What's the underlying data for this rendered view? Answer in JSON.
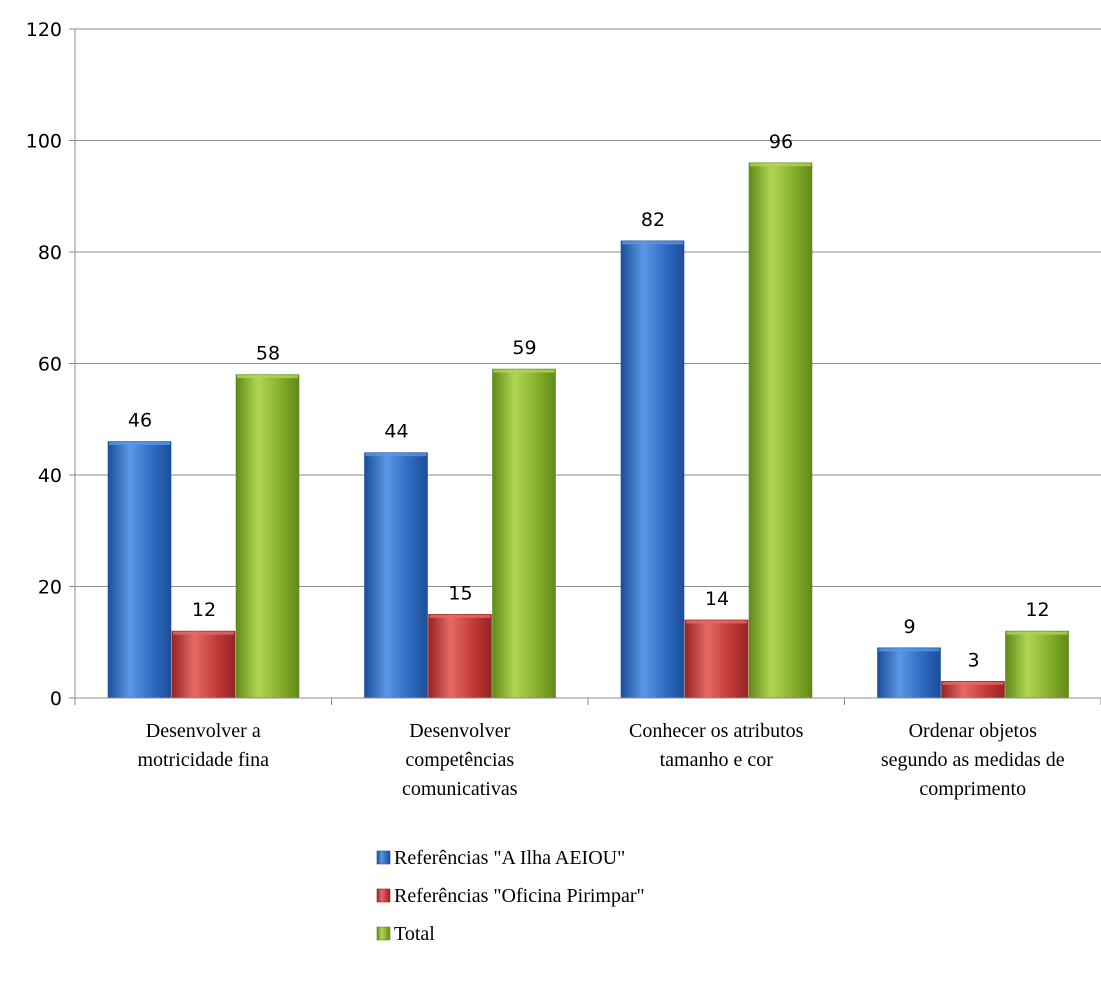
{
  "chart_data": {
    "type": "bar",
    "categories": [
      [
        "Desenvolver a",
        "motricidade fina"
      ],
      [
        "Desenvolver",
        "competências",
        "comunicativas"
      ],
      [
        "Conhecer os atributos",
        "tamanho e cor"
      ],
      [
        "Ordenar objetos",
        "segundo as medidas de",
        "comprimento"
      ]
    ],
    "series": [
      {
        "name": "Referências \"A Ilha AEIOU\"",
        "values": [
          46,
          44,
          82,
          9
        ],
        "color": "#2f6cc4",
        "light": "#5a97e6",
        "dark": "#1d4e97"
      },
      {
        "name": "Referências \"Oficina Pirimpar\"",
        "values": [
          12,
          15,
          14,
          3
        ],
        "color": "#c43a3a",
        "light": "#e66a66",
        "dark": "#962323"
      },
      {
        "name": "Total",
        "values": [
          58,
          59,
          96,
          12
        ],
        "color": "#86b02c",
        "light": "#b0d652",
        "dark": "#5f8a18"
      }
    ],
    "yticks": [
      0,
      20,
      40,
      60,
      80,
      100,
      120
    ],
    "ylim": [
      0,
      120
    ],
    "grid": true,
    "legend_position": "bottom"
  }
}
